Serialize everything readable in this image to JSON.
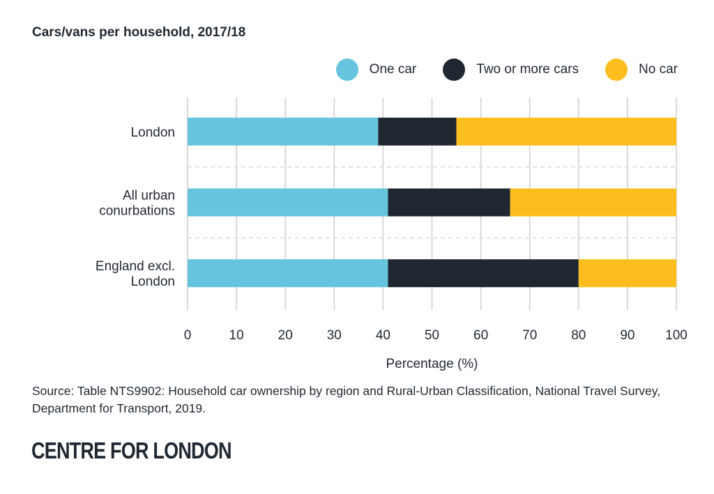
{
  "chart_data": {
    "type": "bar",
    "orientation": "horizontal",
    "stacked": true,
    "title": "Cars/vans per household, 2017/18",
    "xlabel": "Percentage (%)",
    "ylabel": "",
    "xlim": [
      0,
      100
    ],
    "xticks": [
      0,
      10,
      20,
      30,
      40,
      50,
      60,
      70,
      80,
      90,
      100
    ],
    "grid": true,
    "legend_position": "top-right",
    "categories": [
      [
        "London"
      ],
      [
        "All urban",
        "conurbations"
      ],
      [
        "England excl.",
        "London"
      ]
    ],
    "series": [
      {
        "name": "One car",
        "color": "#67c4de",
        "values": [
          39,
          41,
          41
        ]
      },
      {
        "name": "Two or more cars",
        "color": "#1f2730",
        "values": [
          16,
          25,
          39
        ]
      },
      {
        "name": "No car",
        "color": "#fcbe1f",
        "values": [
          45,
          34,
          20
        ]
      }
    ]
  },
  "source": "Source: Table NTS9902: Household car ownership by region and Rural-Urban Classification, National Travel Survey, Department for Transport, 2019.",
  "logo": "CENTRE FOR LONDON"
}
